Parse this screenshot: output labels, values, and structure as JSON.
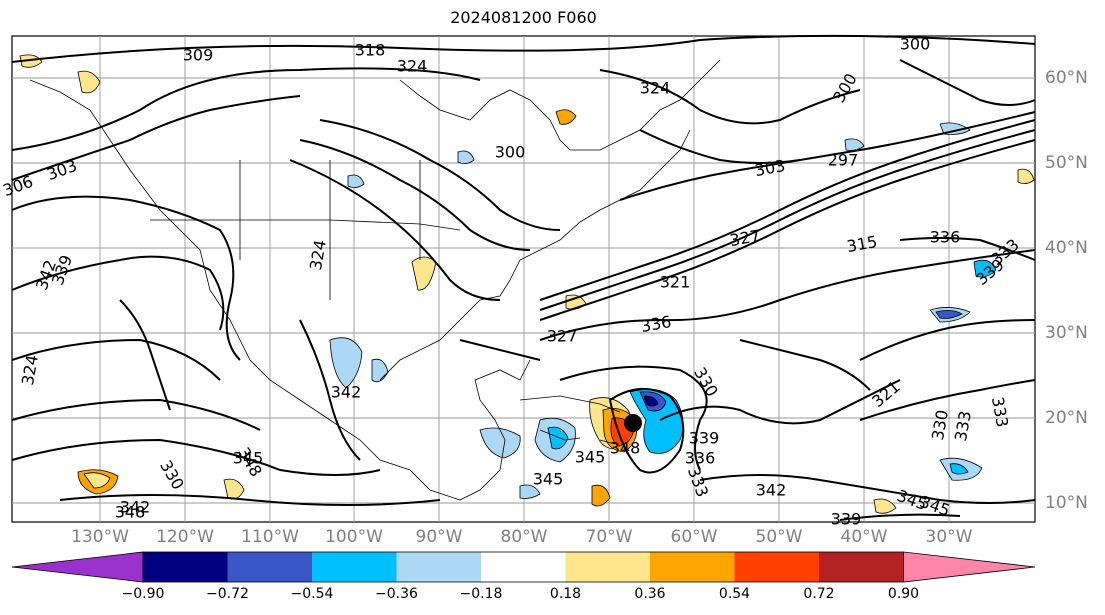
{
  "title": "2024081200 F060",
  "longitude_labels": [
    "130°W",
    "120°W",
    "110°W",
    "100°W",
    "90°W",
    "80°W",
    "70°W",
    "60°W",
    "50°W",
    "40°W",
    "30°W"
  ],
  "latitude_labels": [
    "60°N",
    "50°N",
    "40°N",
    "30°N",
    "20°N",
    "10°N"
  ],
  "contour_labels": [
    "309",
    "318",
    "324",
    "300",
    "303",
    "306",
    "300",
    "303",
    "297",
    "300",
    "324",
    "321",
    "327",
    "315",
    "336",
    "339",
    "333",
    "336",
    "327",
    "324",
    "324",
    "342",
    "339",
    "348",
    "330",
    "345",
    "345",
    "342",
    "348",
    "345",
    "339",
    "348",
    "330",
    "333",
    "336",
    "333",
    "342",
    "345",
    "339",
    "330",
    "333",
    "321",
    "345",
    "342"
  ],
  "colorbar": {
    "ticks": [
      "−0.90",
      "−0.72",
      "−0.54",
      "−0.36",
      "−0.18",
      "0.18",
      "0.36",
      "0.54",
      "0.72",
      "0.90"
    ],
    "colors": [
      "#9932cc",
      "#000080",
      "#3a57c8",
      "#00bfff",
      "#add8f5",
      "#ffffff",
      "#ffe68c",
      "#ffa500",
      "#ff4000",
      "#b22222",
      "#ff85aa"
    ]
  }
}
